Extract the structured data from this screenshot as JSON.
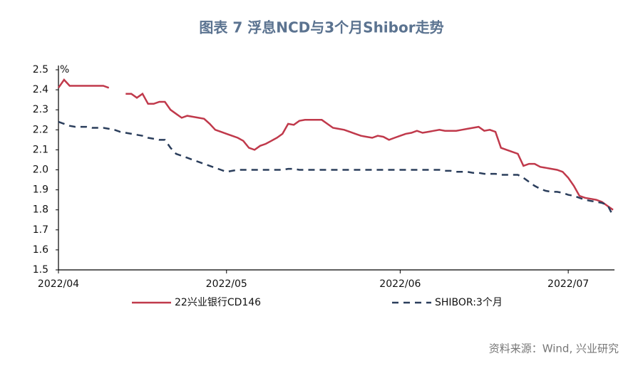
{
  "chart_data": {
    "type": "line",
    "title": "图表 7 浮息NCD与3个月Shibor走势",
    "y_unit": "%",
    "source": "资料来源：Wind, 兴业研究",
    "categories": [
      "2022/04",
      null,
      null,
      null,
      null,
      null,
      null,
      null,
      null,
      null,
      null,
      null,
      null,
      null,
      null,
      null,
      null,
      null,
      null,
      null,
      null,
      null,
      null,
      null,
      null,
      null,
      null,
      null,
      null,
      null,
      "2022/05",
      null,
      null,
      null,
      null,
      null,
      null,
      null,
      null,
      null,
      null,
      null,
      null,
      null,
      null,
      null,
      null,
      null,
      null,
      null,
      null,
      null,
      null,
      null,
      null,
      null,
      null,
      null,
      null,
      null,
      null,
      "2022/06",
      null,
      null,
      null,
      null,
      null,
      null,
      null,
      null,
      null,
      null,
      null,
      null,
      null,
      null,
      null,
      null,
      null,
      null,
      null,
      null,
      null,
      null,
      null,
      null,
      null,
      null,
      null,
      null,
      null,
      "2022/07",
      null,
      null,
      null,
      null,
      null,
      null,
      null,
      null
    ],
    "series": [
      {
        "name": "22兴业银行CD146",
        "color": "#c0394b",
        "dash": false,
        "values": [
          2.41,
          2.45,
          2.42,
          2.42,
          2.42,
          2.42,
          2.42,
          2.42,
          2.42,
          2.41,
          null,
          null,
          2.38,
          2.38,
          2.36,
          2.38,
          2.33,
          2.33,
          2.34,
          2.34,
          2.3,
          2.28,
          2.26,
          2.27,
          2.265,
          2.26,
          2.255,
          2.23,
          2.2,
          2.19,
          2.18,
          2.17,
          2.16,
          2.145,
          2.11,
          2.1,
          2.12,
          2.13,
          2.145,
          2.16,
          2.18,
          2.23,
          2.225,
          2.245,
          2.25,
          2.25,
          2.25,
          2.25,
          2.23,
          2.21,
          2.205,
          2.2,
          2.19,
          2.18,
          2.17,
          2.165,
          2.16,
          2.17,
          2.165,
          2.15,
          2.16,
          2.17,
          2.18,
          2.185,
          2.195,
          2.185,
          2.19,
          2.195,
          2.2,
          2.195,
          2.195,
          2.195,
          2.2,
          2.205,
          2.21,
          2.215,
          2.195,
          2.2,
          2.19,
          2.11,
          2.1,
          2.09,
          2.08,
          2.02,
          2.03,
          2.03,
          2.015,
          2.01,
          2.005,
          2.0,
          1.99,
          1.96,
          1.92,
          1.87,
          1.86,
          1.855,
          1.85,
          1.84,
          1.82,
          1.8
        ]
      },
      {
        "name": "SHIBOR:3个月",
        "color": "#2b3e5c",
        "dash": true,
        "values": [
          2.24,
          2.23,
          2.22,
          2.215,
          2.215,
          2.215,
          2.21,
          2.21,
          2.21,
          2.205,
          2.2,
          2.19,
          2.185,
          2.18,
          2.175,
          2.17,
          2.16,
          2.155,
          2.15,
          2.15,
          2.11,
          2.08,
          2.07,
          2.06,
          2.05,
          2.04,
          2.03,
          2.02,
          2.01,
          2.0,
          1.99,
          1.995,
          2.0,
          2.0,
          2.0,
          2.0,
          2.0,
          2.0,
          2.0,
          2.0,
          2.0,
          2.005,
          2.005,
          2.0,
          2.0,
          2.0,
          2.0,
          2.0,
          2.0,
          2.0,
          2.0,
          2.0,
          2.0,
          2.0,
          2.0,
          2.0,
          2.0,
          2.0,
          2.0,
          2.0,
          2.0,
          2.0,
          2.0,
          2.0,
          2.0,
          2.0,
          2.0,
          2.0,
          2.0,
          1.995,
          1.995,
          1.99,
          1.99,
          1.99,
          1.985,
          1.985,
          1.98,
          1.98,
          1.98,
          1.975,
          1.975,
          1.975,
          1.975,
          1.96,
          1.94,
          1.92,
          1.905,
          1.895,
          1.89,
          1.89,
          1.885,
          1.875,
          1.87,
          1.86,
          1.85,
          1.845,
          1.84,
          1.835,
          1.825,
          1.77
        ]
      }
    ],
    "ylim": [
      1.5,
      2.5
    ],
    "yticks": [
      1.5,
      1.6,
      1.7,
      1.8,
      1.9,
      {
        "value": 2,
        "label": "2.0"
      },
      2.1,
      2.2,
      2.3,
      2.4,
      2.5
    ],
    "grid": false
  }
}
